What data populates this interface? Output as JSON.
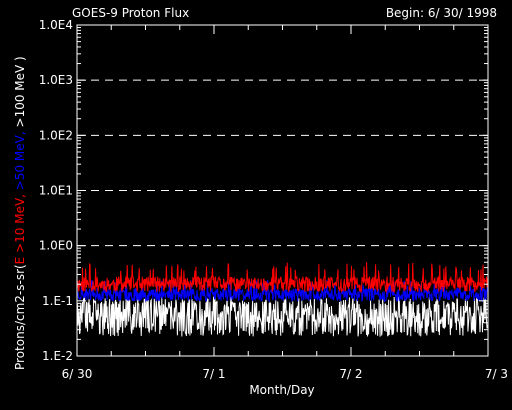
{
  "title": "GOES-9 Proton Flux",
  "begin_label": "Begin: 6/ 30/ 1998",
  "chart_data": {
    "type": "line",
    "title": "GOES-9 Proton Flux",
    "xlabel": "Month/Day",
    "ylabel_parts": [
      {
        "text": "Protons/cm2-s-sr(",
        "color": "#ffffff"
      },
      {
        "text": "E >10 MeV, ",
        "color": "#ff0000"
      },
      {
        "text": ">50 MeV, ",
        "color": "#0000ff"
      },
      {
        "text": ">100 MeV )",
        "color": "#ffffff"
      }
    ],
    "yscale": "log",
    "ylim": [
      0.01,
      10000
    ],
    "y_ticks": [
      {
        "value": 0.01,
        "label": "1.E-2"
      },
      {
        "value": 0.1,
        "label": "1.E-1"
      },
      {
        "value": 1,
        "label": "1.0E0"
      },
      {
        "value": 10,
        "label": "1.0E1"
      },
      {
        "value": 100,
        "label": "1.0E2"
      },
      {
        "value": 1000,
        "label": "1.0E3"
      },
      {
        "value": 10000,
        "label": "1.0E4"
      }
    ],
    "gridlines_dashed_y": [
      1,
      10,
      100,
      1000
    ],
    "xlim": [
      0,
      3
    ],
    "x_ticks": [
      {
        "value": 0,
        "label": "6/ 30"
      },
      {
        "value": 1,
        "label": "7/ 1"
      },
      {
        "value": 2,
        "label": "7/ 2"
      },
      {
        "value": 3,
        "label": "7/ 3"
      }
    ],
    "series": [
      {
        "name": "E >10 MeV",
        "color": "#ff0000",
        "base": 0.2,
        "spread": 0.14,
        "spike": 0.5,
        "seed": 11
      },
      {
        "name": ">50 MeV",
        "color": "#0000ff",
        "base": 0.13,
        "spread": 0.12,
        "spike": 0.24,
        "seed": 23
      },
      {
        "name": ">100 MeV",
        "color": "#ffffff",
        "base": 0.05,
        "spread": 0.35,
        "spike": 0.12,
        "seed": 37
      }
    ]
  }
}
